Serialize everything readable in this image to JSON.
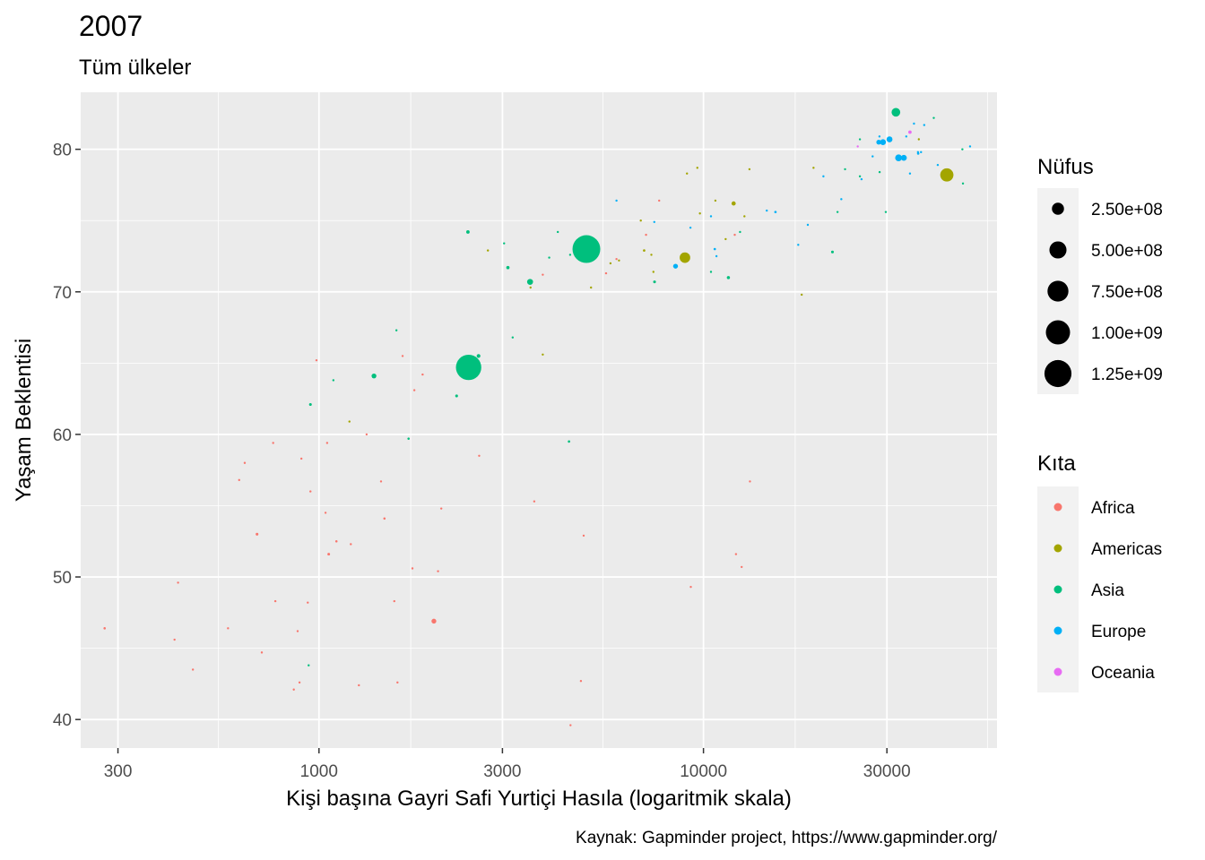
{
  "chart_data": {
    "type": "scatter",
    "title": "2007",
    "subtitle": "Tüm ülkeler",
    "xlabel": "Kişi başına Gayri Safi Yurtiçi Hasıla (logaritmik skala)",
    "ylabel": "Yaşam Beklentisi",
    "caption": "Kaynak: Gapminder project, https://www.gapminder.org/",
    "x_scale": "log10",
    "xlim": [
      240,
      58000
    ],
    "ylim": [
      38,
      84
    ],
    "x_ticks": [
      300,
      1000,
      3000,
      10000,
      30000
    ],
    "x_tick_labels": [
      "300",
      "1000",
      "3000",
      "10000",
      "30000"
    ],
    "y_ticks": [
      40,
      50,
      60,
      70,
      80
    ],
    "y_tick_labels": [
      "40",
      "50",
      "60",
      "70",
      "80"
    ],
    "grid": true,
    "size_legend": {
      "title": "Nüfus",
      "values": [
        250000000,
        500000000,
        750000000,
        1000000000,
        1250000000
      ],
      "labels": [
        "2.50e+08",
        "5.00e+08",
        "7.50e+08",
        "1.00e+09",
        "1.25e+09"
      ]
    },
    "color_legend": {
      "title": "Kıta",
      "entries": [
        {
          "label": "Africa",
          "color": "#F8766D"
        },
        {
          "label": "Americas",
          "color": "#A3A500"
        },
        {
          "label": "Asia",
          "color": "#00BF7D"
        },
        {
          "label": "Europe",
          "color": "#00B0F6"
        },
        {
          "label": "Oceania",
          "color": "#E76BF3"
        }
      ]
    },
    "legend_position": "right",
    "series": [
      {
        "name": "Africa",
        "points": [
          [
            277,
            46.4,
            9
          ],
          [
            421,
            45.6,
            4
          ],
          [
            430,
            49.6,
            5
          ],
          [
            470,
            43.5,
            6
          ],
          [
            580,
            46.4,
            3
          ],
          [
            620,
            56.8,
            4
          ],
          [
            641,
            58.0,
            3
          ],
          [
            690,
            53.0,
            13
          ],
          [
            710,
            44.7,
            3
          ],
          [
            760,
            59.4,
            3
          ],
          [
            770,
            48.3,
            5
          ],
          [
            860,
            42.1,
            6
          ],
          [
            880,
            46.2,
            6
          ],
          [
            890,
            42.6,
            5
          ],
          [
            900,
            58.3,
            3
          ],
          [
            935,
            48.2,
            5
          ],
          [
            950,
            56.0,
            5
          ],
          [
            985,
            65.2,
            2
          ],
          [
            1040,
            54.5,
            4
          ],
          [
            1050,
            59.4,
            8
          ],
          [
            1060,
            51.6,
            12
          ],
          [
            1110,
            52.5,
            9
          ],
          [
            1210,
            52.3,
            8
          ],
          [
            1270,
            42.4,
            4
          ],
          [
            1330,
            60.0,
            6
          ],
          [
            1450,
            56.7,
            4
          ],
          [
            1480,
            54.1,
            9
          ],
          [
            1570,
            48.3,
            5
          ],
          [
            1600,
            42.6,
            3
          ],
          [
            1650,
            65.5,
            2
          ],
          [
            1750,
            50.6,
            4
          ],
          [
            1770,
            63.1,
            4
          ],
          [
            1860,
            64.2,
            4
          ],
          [
            1990,
            46.9,
            40
          ],
          [
            2040,
            50.4,
            5
          ],
          [
            2080,
            54.8,
            2
          ],
          [
            2610,
            58.5,
            6
          ],
          [
            3630,
            55.3,
            4
          ],
          [
            3820,
            71.2,
            4
          ],
          [
            4510,
            39.6,
            2
          ],
          [
            4800,
            42.7,
            4
          ],
          [
            4880,
            52.9,
            3
          ],
          [
            5580,
            71.3,
            8
          ],
          [
            5940,
            72.3,
            4
          ],
          [
            7090,
            74.0,
            3
          ],
          [
            7670,
            76.4,
            2
          ],
          [
            9270,
            49.3,
            3
          ],
          [
            12060,
            74.0,
            3
          ],
          [
            12150,
            51.6,
            2
          ],
          [
            12570,
            50.7,
            3
          ],
          [
            13210,
            56.7,
            1
          ]
        ]
      },
      {
        "name": "Americas",
        "points": [
          [
            1200,
            60.9,
            3
          ],
          [
            2750,
            72.9,
            2
          ],
          [
            3550,
            70.3,
            3
          ],
          [
            3820,
            65.6,
            3
          ],
          [
            5100,
            70.3,
            5
          ],
          [
            5730,
            72.0,
            5
          ],
          [
            6030,
            72.2,
            3
          ],
          [
            6870,
            75.0,
            3
          ],
          [
            7010,
            72.9,
            10
          ],
          [
            7320,
            72.6,
            3
          ],
          [
            7410,
            71.4,
            8
          ],
          [
            8950,
            72.4,
            190
          ],
          [
            9060,
            78.3,
            4
          ],
          [
            9640,
            78.7,
            4
          ],
          [
            9790,
            75.5,
            4
          ],
          [
            10740,
            76.4,
            3
          ],
          [
            11420,
            73.7,
            6
          ],
          [
            11980,
            76.2,
            30
          ],
          [
            12780,
            75.3,
            8
          ],
          [
            13170,
            78.6,
            4
          ],
          [
            18010,
            69.8,
            2
          ],
          [
            19330,
            78.7,
            4
          ],
          [
            36320,
            80.7,
            8
          ],
          [
            42950,
            78.2,
            300
          ]
        ]
      },
      {
        "name": "Asia",
        "points": [
          [
            940,
            43.8,
            5
          ],
          [
            950,
            62.1,
            13
          ],
          [
            1090,
            63.8,
            8
          ],
          [
            1390,
            64.1,
            40
          ],
          [
            1590,
            67.3,
            7
          ],
          [
            1710,
            59.7,
            9
          ],
          [
            2280,
            62.7,
            13
          ],
          [
            2450,
            64.7,
            1100
          ],
          [
            2440,
            74.2,
            20
          ],
          [
            3030,
            73.4,
            3
          ],
          [
            3190,
            66.8,
            3
          ],
          [
            2600,
            65.5,
            24
          ],
          [
            3100,
            71.7,
            18
          ],
          [
            3540,
            70.7,
            60
          ],
          [
            3970,
            72.4,
            7
          ],
          [
            4180,
            74.2,
            5
          ],
          [
            4470,
            59.5,
            10
          ],
          [
            4960,
            73.0,
            1320
          ],
          [
            4500,
            72.6,
            8
          ],
          [
            4800,
            72.5,
            8
          ],
          [
            7460,
            70.7,
            13
          ],
          [
            10460,
            71.4,
            4
          ],
          [
            11610,
            71.0,
            17
          ],
          [
            12450,
            74.2,
            6
          ],
          [
            21650,
            72.8,
            13
          ],
          [
            22320,
            75.6,
            3
          ],
          [
            23350,
            78.6,
            6
          ],
          [
            25520,
            78.1,
            4
          ],
          [
            25520,
            80.7,
            3
          ],
          [
            28720,
            78.4,
            5
          ],
          [
            29800,
            75.6,
            2
          ],
          [
            31660,
            82.6,
            128
          ],
          [
            39720,
            82.2,
            5
          ],
          [
            47140,
            80.0,
            3
          ],
          [
            47310,
            77.6,
            3
          ]
        ]
      },
      {
        "name": "Europe",
        "points": [
          [
            5940,
            76.4,
            3
          ],
          [
            7450,
            74.9,
            3
          ],
          [
            8460,
            71.8,
            40
          ],
          [
            9250,
            74.5,
            2
          ],
          [
            10460,
            75.3,
            4
          ],
          [
            10810,
            72.5,
            7
          ],
          [
            10700,
            73.0,
            10
          ],
          [
            14610,
            75.7,
            4
          ],
          [
            15390,
            75.6,
            10
          ],
          [
            17640,
            73.3,
            5
          ],
          [
            18680,
            74.7,
            4
          ],
          [
            20510,
            78.1,
            5
          ],
          [
            22830,
            76.5,
            5
          ],
          [
            25770,
            77.9,
            4
          ],
          [
            27540,
            79.5,
            5
          ],
          [
            28570,
            80.5,
            40
          ],
          [
            28690,
            80.9,
            4
          ],
          [
            29300,
            80.5,
            60
          ],
          [
            30470,
            80.7,
            60
          ],
          [
            32170,
            79.4,
            80
          ],
          [
            33200,
            79.4,
            60
          ],
          [
            33690,
            80.9,
            4
          ],
          [
            34440,
            78.3,
            5
          ],
          [
            35280,
            81.8,
            4
          ],
          [
            36130,
            79.8,
            5
          ],
          [
            36180,
            79.7,
            10
          ],
          [
            36800,
            79.8,
            5
          ],
          [
            37510,
            81.7,
            4
          ],
          [
            40680,
            78.9,
            3
          ],
          [
            49360,
            80.2,
            5
          ]
        ]
      },
      {
        "name": "Oceania",
        "points": [
          [
            25190,
            80.2,
            3
          ],
          [
            34440,
            81.2,
            20
          ]
        ]
      }
    ]
  }
}
